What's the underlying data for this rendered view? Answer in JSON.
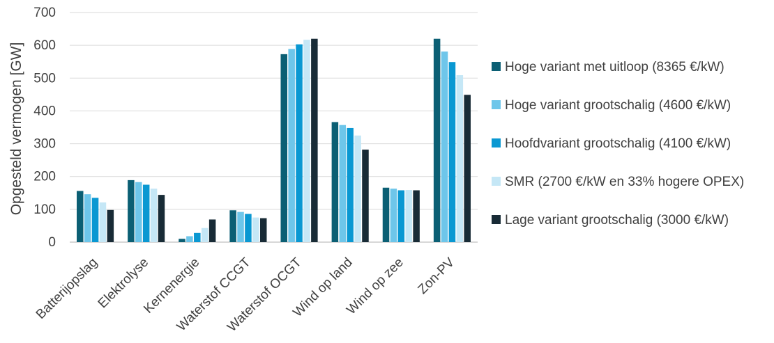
{
  "chart_data": {
    "type": "bar",
    "title": "",
    "xlabel": "",
    "ylabel": "Opgesteld vermogen [GW]",
    "ylim": [
      0,
      700
    ],
    "yticks": [
      0,
      100,
      200,
      300,
      400,
      500,
      600,
      700
    ],
    "grid": true,
    "legend_position": "right",
    "categories": [
      "Batterijopslag",
      "Elektrolyse",
      "Kernenergie",
      "Waterstof CCGT",
      "Waterstof OCGT",
      "Wind op land",
      "Wind op zee",
      "Zon-PV"
    ],
    "series": [
      {
        "name": "Hoge variant met uitloop (8365 €/kW)",
        "color": "#0b5f74",
        "values": [
          156,
          189,
          10,
          97,
          573,
          366,
          166,
          620
        ]
      },
      {
        "name": "Hoge variant grootschalig (4600 €/kW)",
        "color": "#6ec6ea",
        "values": [
          146,
          183,
          18,
          92,
          589,
          357,
          163,
          581
        ]
      },
      {
        "name": "Hoofdvariant grootschalig (4100 €/kW)",
        "color": "#0a98d2",
        "values": [
          135,
          175,
          28,
          86,
          603,
          348,
          158,
          549
        ]
      },
      {
        "name": "SMR (2700 €/kW en 33% hogere OPEX)",
        "color": "#c5e7f6",
        "values": [
          121,
          163,
          43,
          75,
          617,
          325,
          159,
          509
        ]
      },
      {
        "name": "Lage variant grootschalig (3000 €/kW)",
        "color": "#182b36",
        "values": [
          98,
          144,
          69,
          73,
          620,
          282,
          158,
          449
        ]
      }
    ]
  }
}
